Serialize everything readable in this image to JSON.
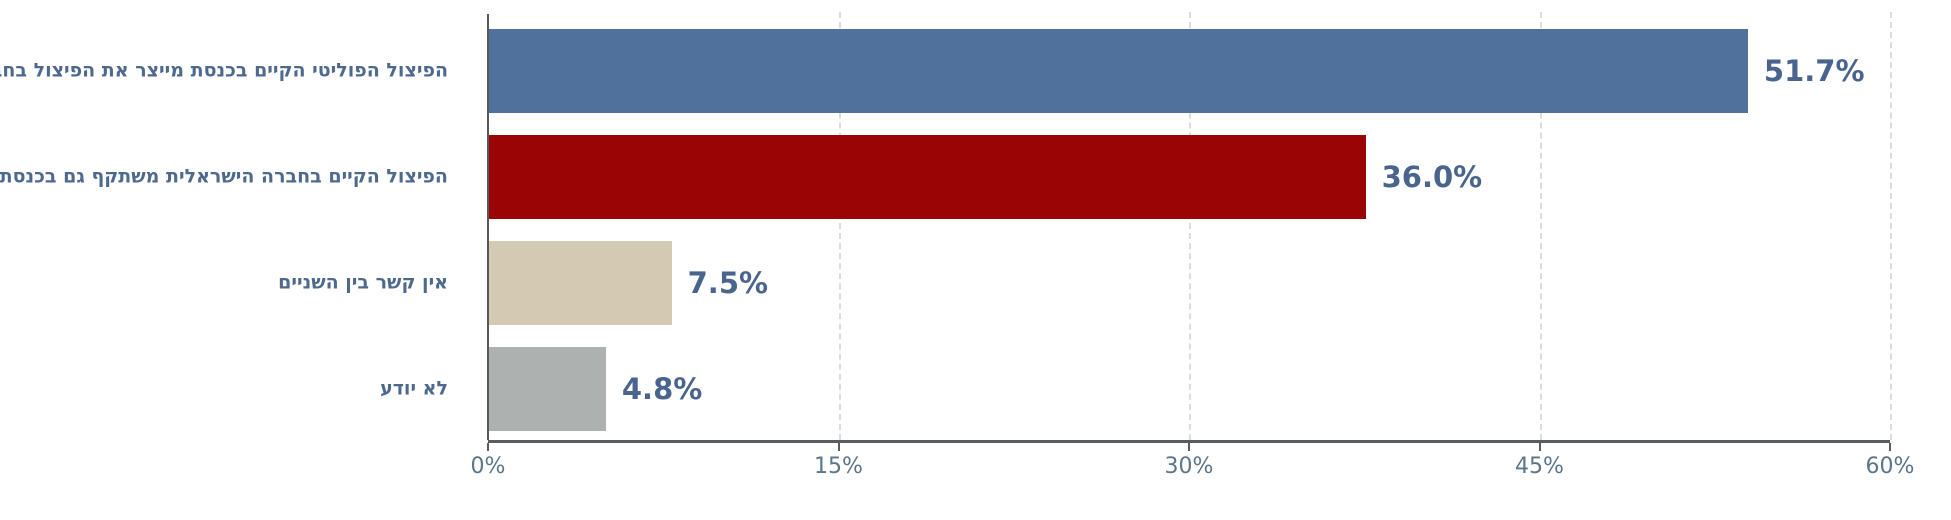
{
  "chart_data": {
    "type": "bar",
    "orientation": "horizontal",
    "title": "",
    "xlabel": "",
    "ylabel": "",
    "xlim": [
      0,
      60
    ],
    "x_unit": "%",
    "grid": "vertical-dashed",
    "x_ticks": [
      {
        "value": 0,
        "label": "0%"
      },
      {
        "value": 15,
        "label": "15%"
      },
      {
        "value": 30,
        "label": "30%"
      },
      {
        "value": 45,
        "label": "45%"
      },
      {
        "value": 60,
        "label": "60%"
      }
    ],
    "bars": [
      {
        "label": "הפיצול הפוליטי הקיים בכנסת מייצר את הפיצול בחברה הישראלית",
        "value": 51.7,
        "value_label": "51.7%",
        "color": "#50719b"
      },
      {
        "label": "הפיצול הקיים בחברה הישראלית משתקף גם בכנסת",
        "value": 36.0,
        "value_label": "36.0%",
        "color": "#9a0404"
      },
      {
        "label": "אין קשר בין השניים",
        "value": 7.5,
        "value_label": "7.5%",
        "color": "#d4cab4"
      },
      {
        "label": "לא יודע",
        "value": 4.8,
        "value_label": "4.8%",
        "color": "#adb1b0"
      }
    ],
    "colors": {
      "category_label_text": "#4d6a8e",
      "value_label_text": "#49658e",
      "axis_line": "#55585c",
      "gridline": "#dcdcdc",
      "tick_label_text": "#5b7589",
      "background": "#ffffff"
    }
  }
}
